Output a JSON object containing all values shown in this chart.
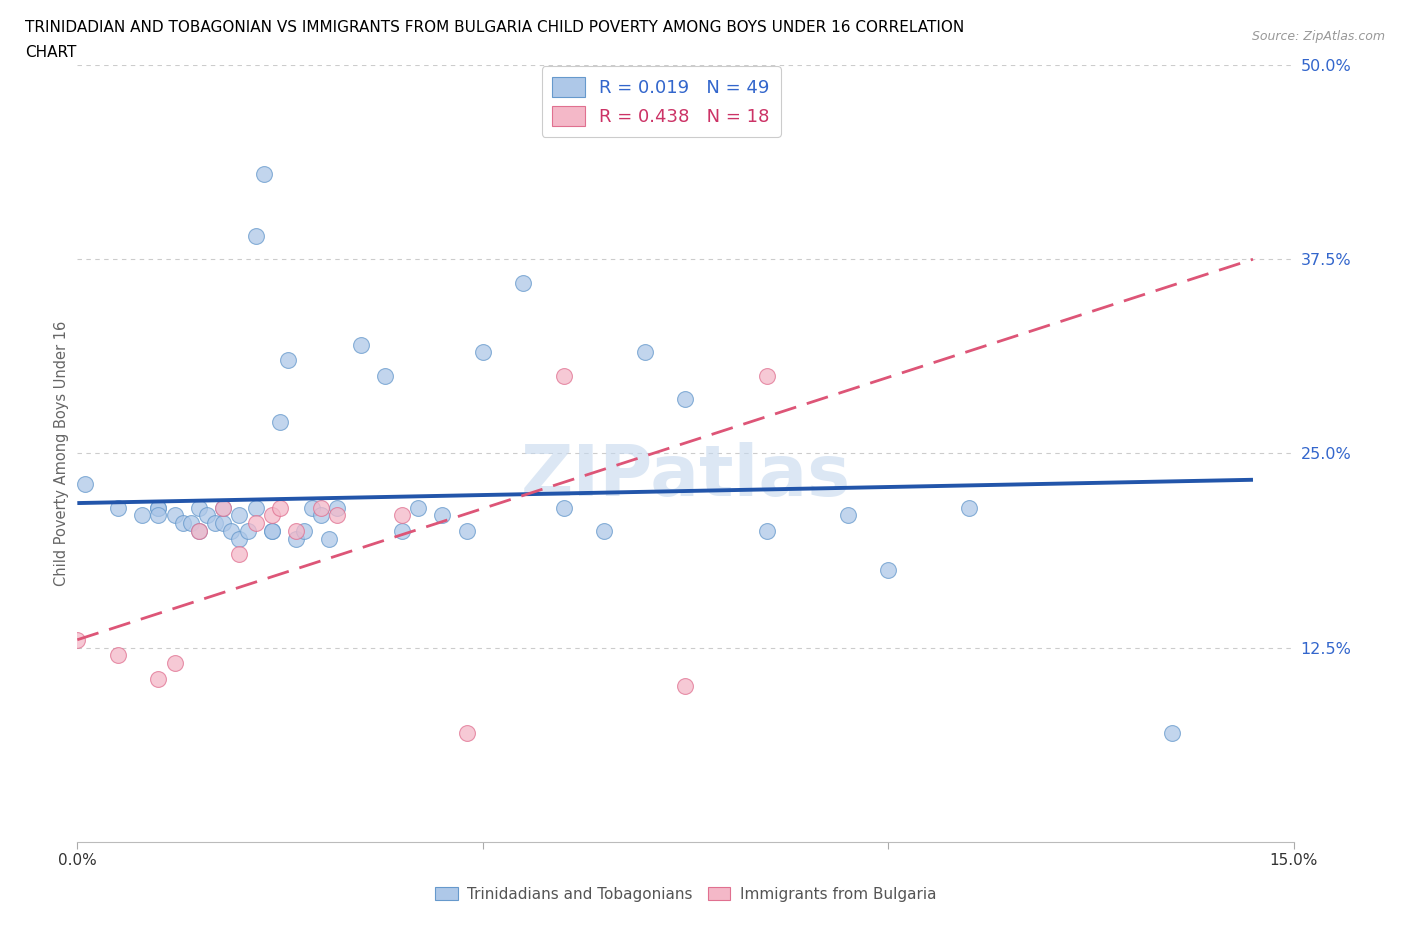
{
  "title_line1": "TRINIDADIAN AND TOBAGONIAN VS IMMIGRANTS FROM BULGARIA CHILD POVERTY AMONG BOYS UNDER 16 CORRELATION",
  "title_line2": "CHART",
  "source_text": "Source: ZipAtlas.com",
  "ylabel": "Child Poverty Among Boys Under 16",
  "xlim": [
    0.0,
    0.15
  ],
  "ylim": [
    0.0,
    0.5
  ],
  "ytick_positions": [
    0.125,
    0.25,
    0.375,
    0.5
  ],
  "ytick_labels": [
    "12.5%",
    "25.0%",
    "37.5%",
    "50.0%"
  ],
  "grid_color": "#cccccc",
  "blue_R": 0.019,
  "blue_N": 49,
  "pink_R": 0.438,
  "pink_N": 18,
  "blue_color": "#aec8e8",
  "pink_color": "#f4b8c8",
  "blue_edge_color": "#6699cc",
  "pink_edge_color": "#e07090",
  "blue_line_color": "#2255aa",
  "pink_line_color": "#dd5577",
  "legend_text_blue": "#3366cc",
  "legend_text_pink": "#cc3366",
  "ytick_color": "#3366cc",
  "blue_x": [
    0.001,
    0.005,
    0.008,
    0.01,
    0.01,
    0.01,
    0.012,
    0.013,
    0.014,
    0.015,
    0.015,
    0.016,
    0.017,
    0.018,
    0.018,
    0.019,
    0.02,
    0.02,
    0.021,
    0.022,
    0.022,
    0.023,
    0.024,
    0.024,
    0.025,
    0.026,
    0.027,
    0.028,
    0.029,
    0.03,
    0.031,
    0.032,
    0.035,
    0.038,
    0.04,
    0.042,
    0.045,
    0.048,
    0.05,
    0.055,
    0.06,
    0.065,
    0.07,
    0.075,
    0.085,
    0.095,
    0.1,
    0.11,
    0.135
  ],
  "blue_y": [
    0.23,
    0.215,
    0.21,
    0.215,
    0.215,
    0.21,
    0.21,
    0.205,
    0.205,
    0.2,
    0.215,
    0.21,
    0.205,
    0.205,
    0.215,
    0.2,
    0.195,
    0.21,
    0.2,
    0.215,
    0.39,
    0.43,
    0.2,
    0.2,
    0.27,
    0.31,
    0.195,
    0.2,
    0.215,
    0.21,
    0.195,
    0.215,
    0.32,
    0.3,
    0.2,
    0.215,
    0.21,
    0.2,
    0.315,
    0.36,
    0.215,
    0.2,
    0.315,
    0.285,
    0.2,
    0.21,
    0.175,
    0.215,
    0.07
  ],
  "pink_x": [
    0.0,
    0.005,
    0.01,
    0.012,
    0.015,
    0.018,
    0.02,
    0.022,
    0.024,
    0.025,
    0.027,
    0.03,
    0.032,
    0.04,
    0.048,
    0.06,
    0.075,
    0.085
  ],
  "pink_y": [
    0.13,
    0.12,
    0.105,
    0.115,
    0.2,
    0.215,
    0.185,
    0.205,
    0.21,
    0.215,
    0.2,
    0.215,
    0.21,
    0.21,
    0.07,
    0.3,
    0.1,
    0.3
  ],
  "blue_trend_x": [
    0.0,
    0.145
  ],
  "blue_trend_y": [
    0.218,
    0.233
  ],
  "pink_trend_x": [
    0.0,
    0.145
  ],
  "pink_trend_y": [
    0.13,
    0.375
  ],
  "watermark_text": "ZIPatlas",
  "watermark_color": "#c5d8ee",
  "watermark_alpha": 0.6
}
